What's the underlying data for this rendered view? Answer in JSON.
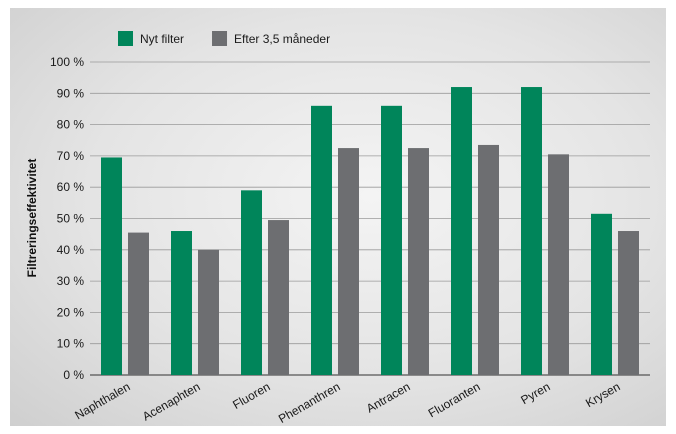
{
  "chart_data": {
    "type": "bar",
    "ylabel": "Filtreringseffektivitet",
    "ylim": [
      0,
      100
    ],
    "yticks": [
      "0 %",
      "10 %",
      "20 %",
      "30 %",
      "40 %",
      "50 %",
      "60 %",
      "70 %",
      "80 %",
      "90 %",
      "100 %"
    ],
    "grid": true,
    "legend_position": "top-left",
    "categories": [
      "Naphthalen",
      "Acenaphten",
      "Fluoren",
      "Phenanthren",
      "Antracen",
      "Fluoranten",
      "Pyren",
      "Krysen"
    ],
    "series": [
      {
        "name": "Nyt filter",
        "color": "#00855a",
        "values": [
          69.5,
          46,
          59,
          86,
          86,
          92,
          92,
          51.5
        ]
      },
      {
        "name": "Efter 3,5 måneder",
        "color": "#6d6e71",
        "values": [
          45.5,
          40,
          49.5,
          72.5,
          72.5,
          73.5,
          70.5,
          46
        ]
      }
    ]
  }
}
